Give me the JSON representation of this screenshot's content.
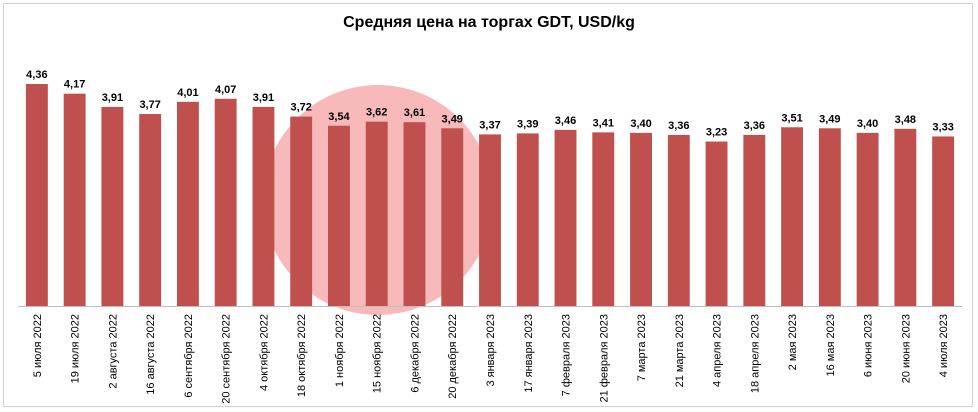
{
  "chart_data": {
    "type": "bar",
    "title": "Средняя цена на торгах GDT, USD/kg",
    "xlabel": "",
    "ylabel": "",
    "ylim": [
      0,
      4.36
    ],
    "grid": false,
    "legend": "none",
    "bar_color": "#c0504d",
    "categories": [
      "5 июля 2022",
      "19 июля 2022",
      "2 августа 2022",
      "16 августа 2022",
      "6 сентября 2022",
      "20 сентября 2022",
      "4 октября 2022",
      "18 октября 2022",
      "1 ноября 2022",
      "15 ноября 2022",
      "6 декабря 2022",
      "20 декабря 2022",
      "3 января 2023",
      "17 января 2023",
      "7 февраля 2023",
      "21 февраля 2023",
      "7 марта 2023",
      "21 марта 2023",
      "4 апреля 2023",
      "18 апреля 2023",
      "2 мая 2023",
      "16 мая 2023",
      "6 июня 2023",
      "20 июня 2023",
      "4 июля 2023"
    ],
    "values": [
      4.36,
      4.17,
      3.91,
      3.77,
      4.01,
      4.07,
      3.91,
      3.72,
      3.54,
      3.62,
      3.61,
      3.49,
      3.37,
      3.39,
      3.46,
      3.41,
      3.4,
      3.36,
      3.23,
      3.36,
      3.51,
      3.49,
      3.4,
      3.48,
      3.33
    ],
    "value_labels": [
      "4,36",
      "4,17",
      "3,91",
      "3,77",
      "4,01",
      "4,07",
      "3,91",
      "3,72",
      "3,54",
      "3,62",
      "3,61",
      "3,49",
      "3,37",
      "3,39",
      "3,46",
      "3,41",
      "3,40",
      "3,36",
      "3,23",
      "3,36",
      "3,51",
      "3,49",
      "3,40",
      "3,48",
      "3,33"
    ]
  },
  "watermark": {
    "shape": "circle-logo",
    "color": "#f08080"
  }
}
